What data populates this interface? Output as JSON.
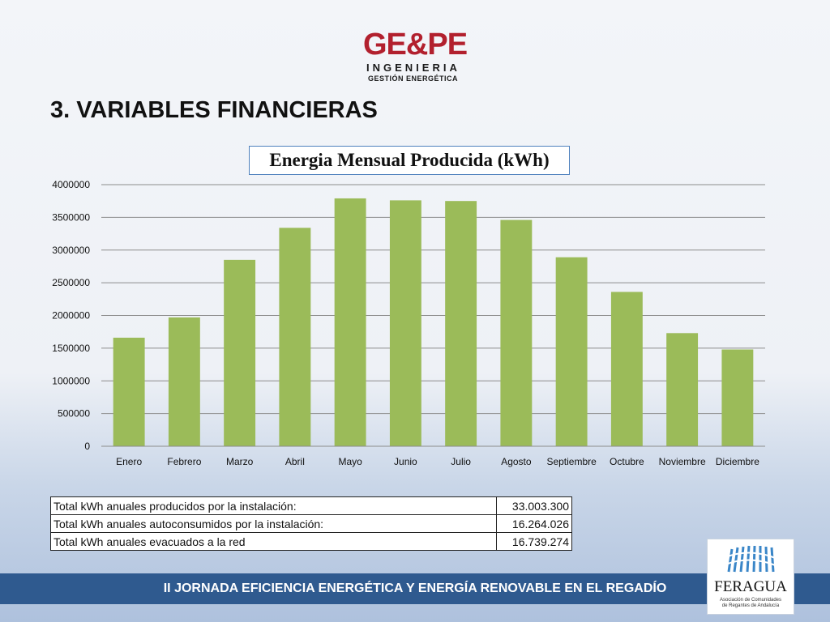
{
  "logo": {
    "mark": "GE&PE",
    "line1": "INGENIERIA",
    "line2": "GESTIÓN ENERGÉTICA",
    "color": "#b2202e"
  },
  "heading": "3. VARIABLES FINANCIERAS",
  "chart_data": {
    "type": "bar",
    "title": "Energia Mensual Producida (kWh)",
    "categories": [
      "Enero",
      "Febrero",
      "Marzo",
      "Abril",
      "Mayo",
      "Junio",
      "Julio",
      "Agosto",
      "Septiembre",
      "Octubre",
      "Noviembre",
      "Diciembre"
    ],
    "values": [
      1660000,
      1970000,
      2850000,
      3340000,
      3790000,
      3760000,
      3750000,
      3460000,
      2890000,
      2360000,
      1730000,
      1480000
    ],
    "yticks": [
      "0",
      "500000",
      "1000000",
      "1500000",
      "2000000",
      "2500000",
      "3000000",
      "3500000",
      "4000000"
    ],
    "ylim": [
      0,
      4000000
    ],
    "grid": true,
    "bar_color": "#9bbb59"
  },
  "summary": [
    {
      "label": "Total kWh anuales producidos por la instalación:",
      "value": "33.003.300"
    },
    {
      "label": " Total kWh anuales autoconsumidos por la instalación:",
      "value": "16.264.026"
    },
    {
      "label": "Total kWh anuales evacuados a la red",
      "value": "16.739.274"
    }
  ],
  "footer": {
    "text": "II JORNADA EFICIENCIA ENERGÉTICA Y ENERGÍA RENOVABLE EN EL REGADÍO",
    "color": "#2f5a8f"
  },
  "feragua": {
    "name": "FERAGUA",
    "sub1": "Asociación de Comunidades",
    "sub2": "de Regantes de Andalucía"
  }
}
